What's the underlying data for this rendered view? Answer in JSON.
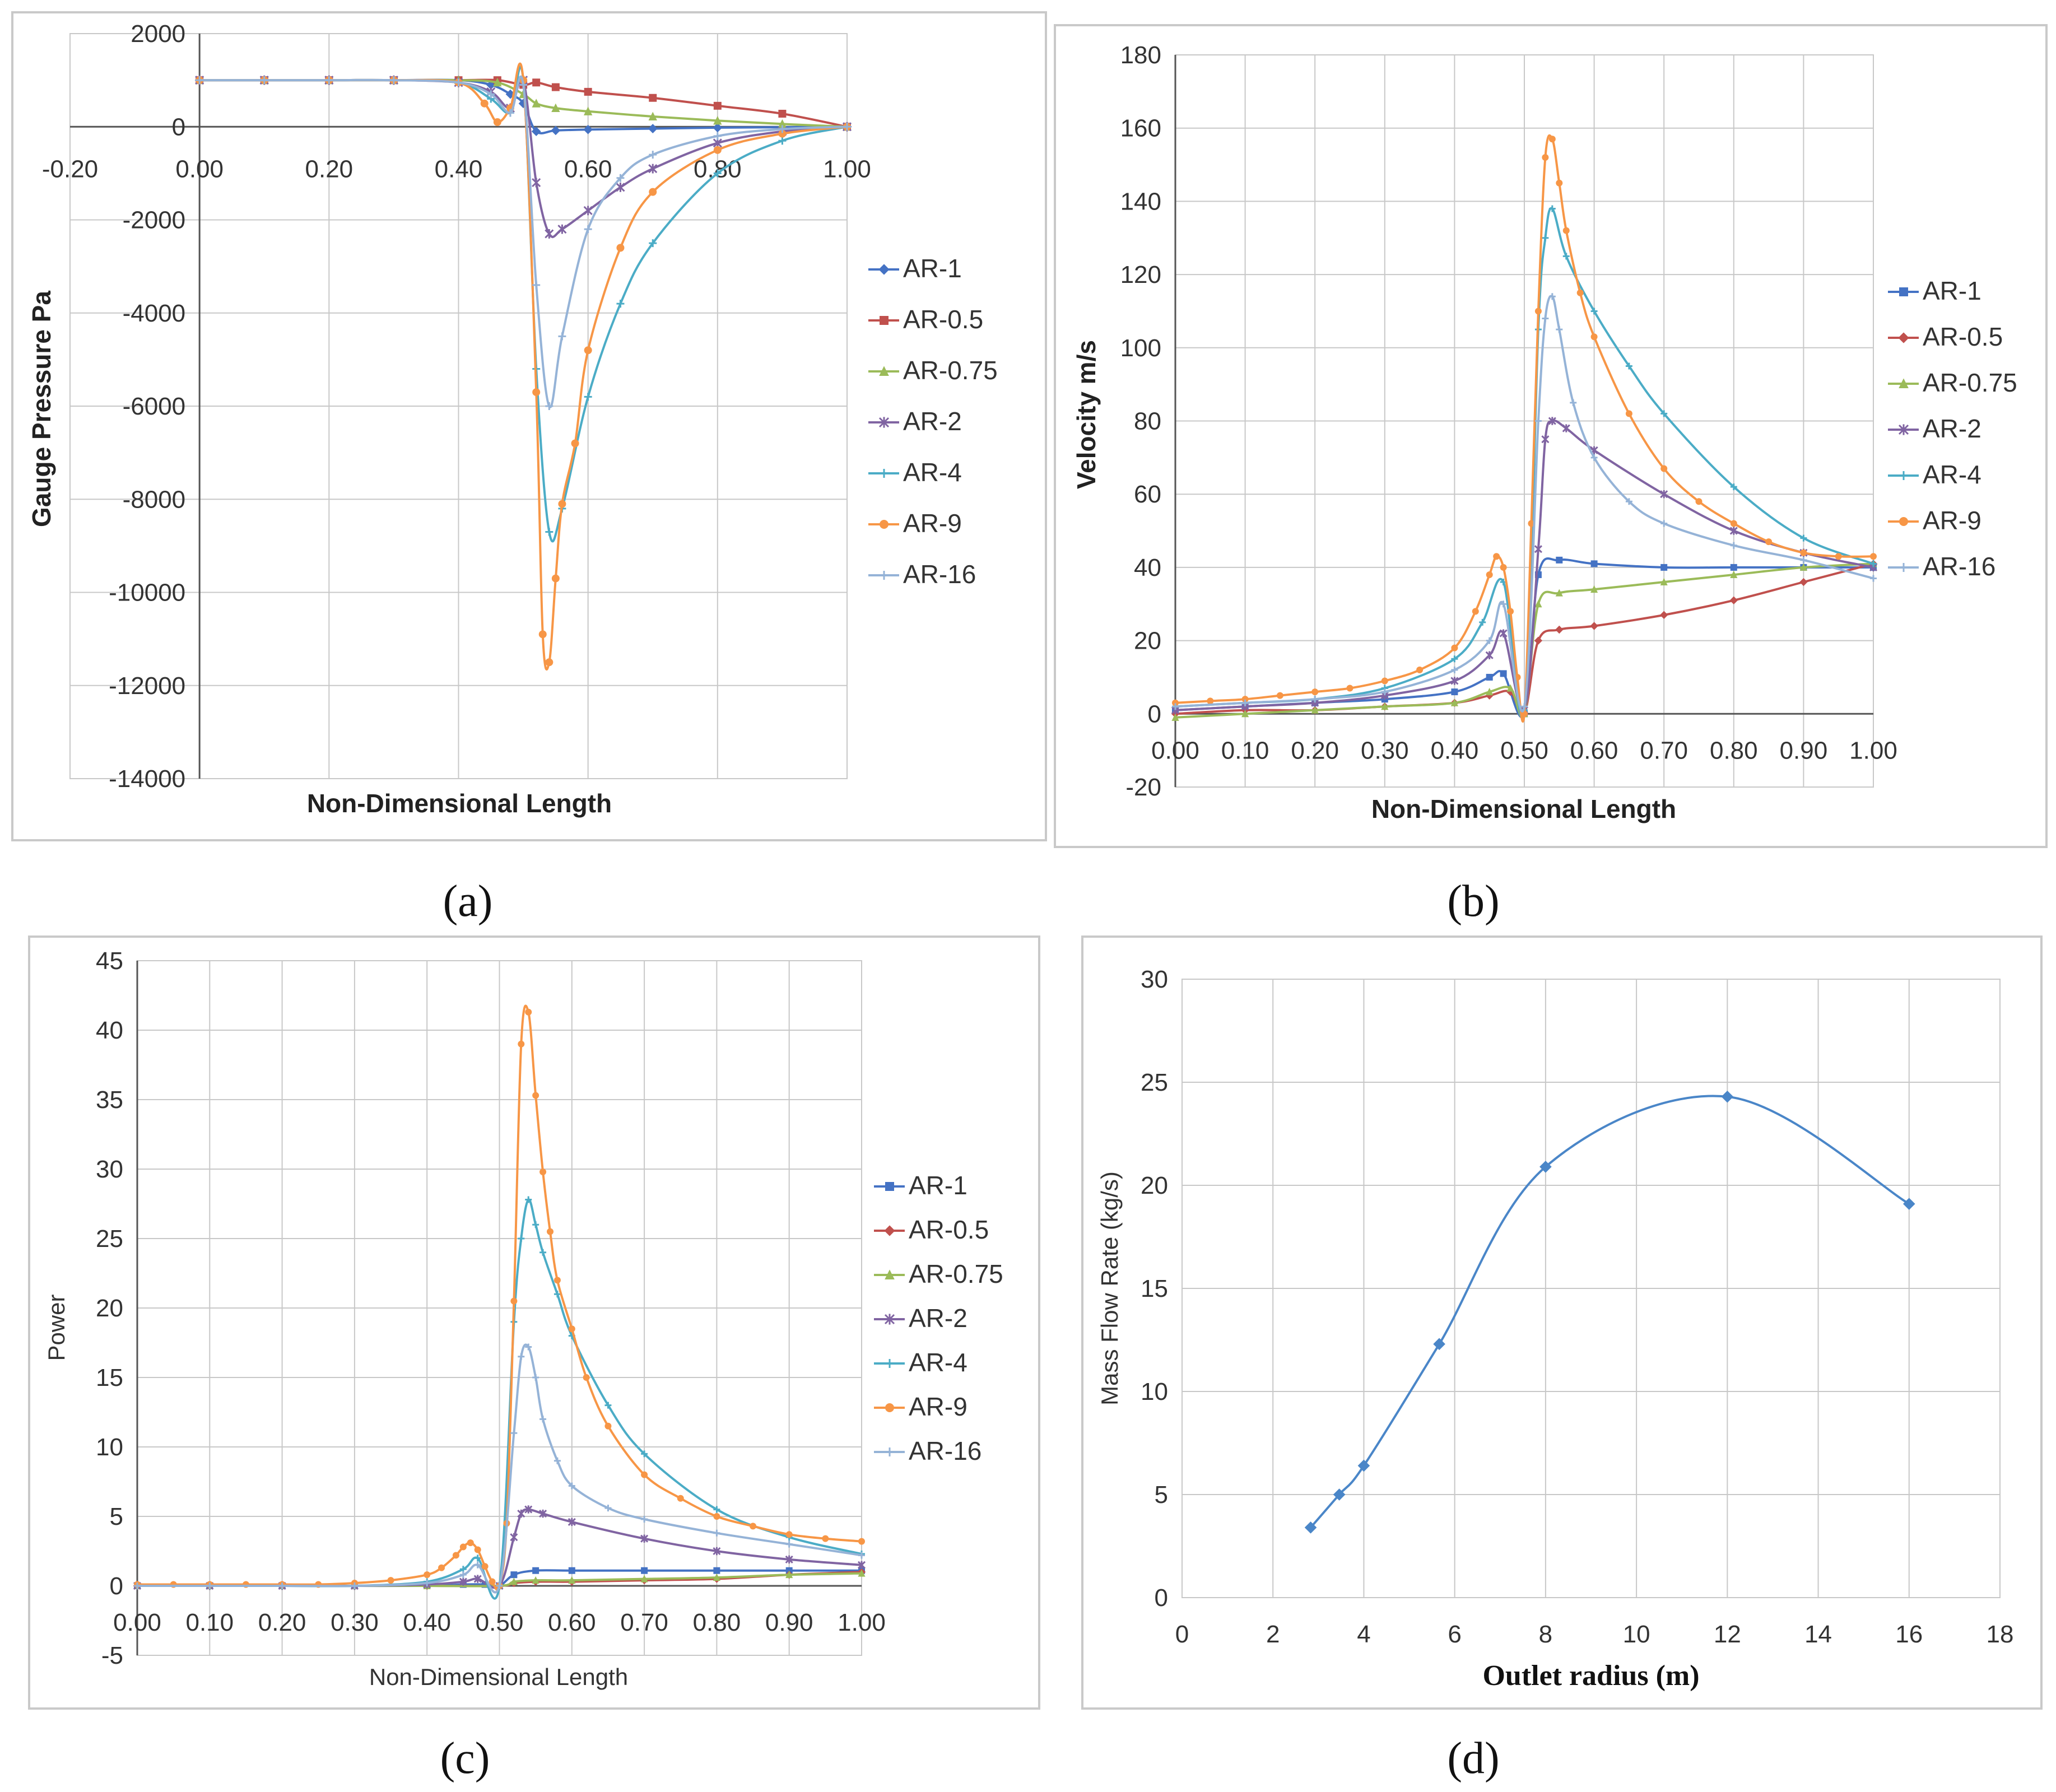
{
  "captions": [
    "(a)",
    "(b)",
    "(c)",
    "(d)"
  ],
  "colors": {
    "AR-1": "#4472C4",
    "AR-0.5": "#C0504D",
    "AR-0.75": "#9BBB59",
    "AR-2": "#8064A2",
    "AR-4": "#4BACC6",
    "AR-9": "#F79646",
    "AR-16": "#95B3D7",
    "mass": "#4A86C8"
  },
  "chart_data": [
    {
      "type": "line",
      "panel": "(a)",
      "xlabel": "Non-Dimensional Length",
      "ylabel": "Gauge Pressure Pa",
      "xlim": [
        -0.2,
        1.0
      ],
      "ylim": [
        -14000,
        2000
      ],
      "xticks": [
        "-0.20",
        "0.00",
        "0.20",
        "0.40",
        "0.60",
        "0.80",
        "1.00"
      ],
      "yticks": [
        "2000",
        "0",
        "-2000",
        "-4000",
        "-6000",
        "-8000",
        "-10000",
        "-12000",
        "-14000"
      ],
      "legend": [
        "AR-1",
        "AR-0.5",
        "AR-0.75",
        "AR-2",
        "AR-4",
        "AR-9",
        "AR-16"
      ],
      "series": [
        {
          "name": "AR-1",
          "marker": "diamond",
          "x": [
            0,
            0.1,
            0.2,
            0.3,
            0.4,
            0.45,
            0.48,
            0.5,
            0.52,
            0.55,
            0.6,
            0.7,
            0.8,
            0.9,
            1.0
          ],
          "y": [
            1000,
            1000,
            1000,
            1000,
            1000,
            900,
            700,
            500,
            -100,
            -80,
            -60,
            -40,
            -20,
            -10,
            0
          ]
        },
        {
          "name": "AR-0.5",
          "marker": "square",
          "x": [
            0,
            0.1,
            0.2,
            0.3,
            0.4,
            0.46,
            0.5,
            0.52,
            0.55,
            0.6,
            0.7,
            0.8,
            0.9,
            1.0
          ],
          "y": [
            1000,
            1000,
            1000,
            1000,
            1000,
            1000,
            900,
            950,
            850,
            750,
            620,
            450,
            280,
            0
          ]
        },
        {
          "name": "AR-0.75",
          "marker": "triangle",
          "x": [
            0,
            0.1,
            0.2,
            0.3,
            0.4,
            0.46,
            0.5,
            0.52,
            0.55,
            0.6,
            0.7,
            0.8,
            0.9,
            1.0
          ],
          "y": [
            1000,
            1000,
            1000,
            1000,
            1000,
            950,
            700,
            500,
            400,
            330,
            220,
            130,
            60,
            0
          ]
        },
        {
          "name": "AR-2",
          "marker": "star",
          "x": [
            0,
            0.1,
            0.2,
            0.3,
            0.4,
            0.45,
            0.48,
            0.5,
            0.52,
            0.54,
            0.56,
            0.6,
            0.65,
            0.7,
            0.8,
            0.9,
            1.0
          ],
          "y": [
            1000,
            1000,
            1000,
            1000,
            950,
            750,
            400,
            1000,
            -1200,
            -2300,
            -2200,
            -1800,
            -1300,
            -900,
            -350,
            -100,
            0
          ]
        },
        {
          "name": "AR-4",
          "marker": "plus",
          "x": [
            0,
            0.1,
            0.2,
            0.3,
            0.4,
            0.45,
            0.48,
            0.5,
            0.52,
            0.54,
            0.56,
            0.6,
            0.65,
            0.7,
            0.8,
            0.9,
            1.0
          ],
          "y": [
            1000,
            1000,
            1000,
            1000,
            950,
            600,
            300,
            1000,
            -5200,
            -8700,
            -8200,
            -5800,
            -3800,
            -2500,
            -1000,
            -300,
            0
          ]
        },
        {
          "name": "AR-9",
          "marker": "circle",
          "x": [
            0,
            0.1,
            0.2,
            0.3,
            0.4,
            0.44,
            0.46,
            0.48,
            0.5,
            0.52,
            0.53,
            0.54,
            0.55,
            0.56,
            0.58,
            0.6,
            0.65,
            0.7,
            0.8,
            0.9,
            1.0
          ],
          "y": [
            1000,
            1000,
            1000,
            1000,
            950,
            500,
            100,
            400,
            1000,
            -5700,
            -10900,
            -11500,
            -9700,
            -8100,
            -6800,
            -4800,
            -2600,
            -1400,
            -500,
            -150,
            0
          ]
        },
        {
          "name": "AR-16",
          "marker": "plus",
          "x": [
            0,
            0.1,
            0.2,
            0.3,
            0.4,
            0.45,
            0.48,
            0.5,
            0.52,
            0.54,
            0.56,
            0.6,
            0.65,
            0.7,
            0.8,
            0.9,
            1.0
          ],
          "y": [
            1000,
            1000,
            1000,
            1000,
            950,
            700,
            300,
            900,
            -3400,
            -6000,
            -4500,
            -2200,
            -1100,
            -600,
            -200,
            -50,
            0
          ]
        }
      ]
    },
    {
      "type": "line",
      "panel": "(b)",
      "xlabel": "Non-Dimensional Length",
      "ylabel": "Velocity m/s",
      "xlim": [
        0,
        1.0
      ],
      "ylim": [
        -20,
        180
      ],
      "xticks": [
        "0.00",
        "0.10",
        "0.20",
        "0.30",
        "0.40",
        "0.50",
        "0.60",
        "0.70",
        "0.80",
        "0.90",
        "1.00"
      ],
      "yticks": [
        "180",
        "160",
        "140",
        "120",
        "100",
        "80",
        "60",
        "40",
        "20",
        "0",
        "-20"
      ],
      "legend": [
        "AR-1",
        "AR-0.5",
        "AR-0.75",
        "AR-2",
        "AR-4",
        "AR-9",
        "AR-16"
      ],
      "series": [
        {
          "name": "AR-1",
          "marker": "square",
          "x": [
            0,
            0.1,
            0.2,
            0.3,
            0.4,
            0.45,
            0.47,
            0.5,
            0.52,
            0.55,
            0.6,
            0.7,
            0.8,
            0.9,
            1.0
          ],
          "y": [
            1,
            2,
            3,
            4,
            6,
            10,
            11,
            0,
            38,
            42,
            41,
            40,
            40,
            40,
            40
          ]
        },
        {
          "name": "AR-0.5",
          "marker": "diamond",
          "x": [
            0,
            0.1,
            0.2,
            0.3,
            0.4,
            0.45,
            0.48,
            0.5,
            0.52,
            0.55,
            0.6,
            0.7,
            0.8,
            0.9,
            1.0
          ],
          "y": [
            0,
            1,
            1,
            2,
            3,
            5,
            6,
            0,
            20,
            23,
            24,
            27,
            31,
            36,
            41
          ]
        },
        {
          "name": "AR-0.75",
          "marker": "triangle",
          "x": [
            0,
            0.1,
            0.2,
            0.3,
            0.4,
            0.45,
            0.48,
            0.5,
            0.52,
            0.55,
            0.6,
            0.7,
            0.8,
            0.9,
            1.0
          ],
          "y": [
            -1,
            0,
            1,
            2,
            3,
            6,
            7,
            0,
            30,
            33,
            34,
            36,
            38,
            40,
            41
          ]
        },
        {
          "name": "AR-2",
          "marker": "star",
          "x": [
            0,
            0.1,
            0.2,
            0.3,
            0.4,
            0.45,
            0.47,
            0.5,
            0.52,
            0.53,
            0.54,
            0.56,
            0.6,
            0.7,
            0.8,
            0.9,
            1.0
          ],
          "y": [
            1,
            2,
            3,
            5,
            9,
            16,
            22,
            1,
            45,
            75,
            80,
            78,
            72,
            60,
            50,
            44,
            40
          ]
        },
        {
          "name": "AR-4",
          "marker": "plus",
          "x": [
            0,
            0.1,
            0.2,
            0.3,
            0.4,
            0.44,
            0.47,
            0.5,
            0.52,
            0.53,
            0.54,
            0.56,
            0.6,
            0.65,
            0.7,
            0.8,
            0.9,
            1.0
          ],
          "y": [
            2,
            3,
            4,
            7,
            15,
            25,
            36,
            1,
            105,
            130,
            138,
            125,
            110,
            95,
            82,
            62,
            48,
            41
          ]
        },
        {
          "name": "AR-9",
          "marker": "circle",
          "x": [
            0,
            0.05,
            0.1,
            0.15,
            0.2,
            0.25,
            0.3,
            0.35,
            0.4,
            0.43,
            0.45,
            0.46,
            0.47,
            0.48,
            0.49,
            0.5,
            0.51,
            0.52,
            0.53,
            0.54,
            0.55,
            0.56,
            0.58,
            0.6,
            0.65,
            0.7,
            0.75,
            0.8,
            0.85,
            0.9,
            0.95,
            1.0
          ],
          "y": [
            3,
            3.5,
            4,
            5,
            6,
            7,
            9,
            12,
            18,
            28,
            38,
            43,
            40,
            28,
            10,
            0,
            52,
            110,
            152,
            157,
            145,
            132,
            115,
            103,
            82,
            67,
            58,
            52,
            47,
            44,
            43,
            43
          ]
        },
        {
          "name": "AR-16",
          "marker": "plus",
          "x": [
            0,
            0.1,
            0.2,
            0.3,
            0.4,
            0.45,
            0.47,
            0.5,
            0.52,
            0.53,
            0.54,
            0.55,
            0.57,
            0.6,
            0.65,
            0.7,
            0.8,
            0.9,
            1.0
          ],
          "y": [
            2,
            3,
            4,
            6,
            12,
            20,
            30,
            2,
            80,
            108,
            114,
            105,
            85,
            70,
            58,
            52,
            46,
            42,
            37
          ]
        }
      ]
    },
    {
      "type": "line",
      "panel": "(c)",
      "xlabel": "Non-Dimensional Length",
      "ylabel": "Power",
      "xlim": [
        0,
        1.0
      ],
      "ylim": [
        -5,
        45
      ],
      "xticks": [
        "0.00",
        "0.10",
        "0.20",
        "0.30",
        "0.40",
        "0.50",
        "0.60",
        "0.70",
        "0.80",
        "0.90",
        "1.00"
      ],
      "yticks": [
        "45",
        "40",
        "35",
        "30",
        "25",
        "20",
        "15",
        "10",
        "5",
        "0",
        "-5"
      ],
      "legend": [
        "AR-1",
        "AR-0.5",
        "AR-0.75",
        "AR-2",
        "AR-4",
        "AR-9",
        "AR-16"
      ],
      "series": [
        {
          "name": "AR-1",
          "marker": "square",
          "x": [
            0,
            0.1,
            0.2,
            0.3,
            0.4,
            0.45,
            0.48,
            0.5,
            0.52,
            0.55,
            0.6,
            0.7,
            0.8,
            0.9,
            1.0
          ],
          "y": [
            0,
            0,
            0,
            0,
            0,
            0.1,
            0.1,
            0,
            0.8,
            1.1,
            1.1,
            1.1,
            1.1,
            1.1,
            1.1
          ]
        },
        {
          "name": "AR-0.5",
          "marker": "diamond",
          "x": [
            0,
            0.1,
            0.2,
            0.3,
            0.4,
            0.5,
            0.52,
            0.55,
            0.6,
            0.7,
            0.8,
            0.9,
            1.0
          ],
          "y": [
            0,
            0,
            0,
            0,
            0,
            0,
            0.2,
            0.3,
            0.3,
            0.4,
            0.5,
            0.8,
            1.0
          ]
        },
        {
          "name": "AR-0.75",
          "marker": "triangle",
          "x": [
            0,
            0.1,
            0.2,
            0.3,
            0.4,
            0.5,
            0.52,
            0.55,
            0.6,
            0.7,
            0.8,
            0.9,
            1.0
          ],
          "y": [
            0,
            0,
            0,
            0,
            0,
            0,
            0.3,
            0.4,
            0.4,
            0.5,
            0.6,
            0.8,
            0.9
          ]
        },
        {
          "name": "AR-2",
          "marker": "star",
          "x": [
            0,
            0.1,
            0.2,
            0.3,
            0.4,
            0.45,
            0.47,
            0.5,
            0.52,
            0.53,
            0.54,
            0.56,
            0.6,
            0.7,
            0.8,
            0.9,
            1.0
          ],
          "y": [
            0,
            0,
            0,
            0,
            0.1,
            0.3,
            0.5,
            0,
            3.5,
            5.2,
            5.5,
            5.2,
            4.6,
            3.4,
            2.5,
            1.9,
            1.5
          ]
        },
        {
          "name": "AR-4",
          "marker": "plus",
          "x": [
            0,
            0.1,
            0.2,
            0.3,
            0.4,
            0.45,
            0.47,
            0.5,
            0.52,
            0.53,
            0.54,
            0.55,
            0.56,
            0.58,
            0.6,
            0.65,
            0.7,
            0.8,
            0.9,
            1.0
          ],
          "y": [
            0,
            0,
            0,
            0,
            0.3,
            1.2,
            2.0,
            0,
            19,
            25,
            27.8,
            26,
            24,
            21,
            18,
            13,
            9.5,
            5.5,
            3.5,
            2.3
          ]
        },
        {
          "name": "AR-9",
          "marker": "circle",
          "x": [
            0,
            0.05,
            0.1,
            0.15,
            0.2,
            0.25,
            0.3,
            0.35,
            0.4,
            0.42,
            0.44,
            0.45,
            0.46,
            0.47,
            0.48,
            0.49,
            0.5,
            0.51,
            0.52,
            0.53,
            0.54,
            0.55,
            0.56,
            0.57,
            0.58,
            0.6,
            0.62,
            0.65,
            0.7,
            0.75,
            0.8,
            0.85,
            0.9,
            0.95,
            1.0
          ],
          "y": [
            0.1,
            0.1,
            0.1,
            0.1,
            0.1,
            0.1,
            0.2,
            0.4,
            0.8,
            1.3,
            2.2,
            2.8,
            3.1,
            2.6,
            1.4,
            0.3,
            0,
            4.5,
            20.5,
            39,
            41.3,
            35.3,
            29.8,
            25.5,
            22,
            18.5,
            15,
            11.5,
            8,
            6.3,
            5,
            4.3,
            3.7,
            3.4,
            3.2
          ]
        },
        {
          "name": "AR-16",
          "marker": "plus",
          "x": [
            0,
            0.1,
            0.2,
            0.3,
            0.4,
            0.45,
            0.47,
            0.5,
            0.52,
            0.53,
            0.54,
            0.55,
            0.56,
            0.58,
            0.6,
            0.65,
            0.7,
            0.8,
            0.9,
            1.0
          ],
          "y": [
            0,
            0,
            0,
            0,
            0.2,
            0.8,
            1.5,
            0,
            11,
            16.5,
            17.2,
            15,
            12,
            9,
            7.2,
            5.6,
            4.8,
            3.8,
            3.0,
            2.2
          ]
        }
      ]
    },
    {
      "type": "line",
      "panel": "(d)",
      "xlabel": "Outlet radius (m)",
      "ylabel": "Mass Flow Rate (kg/s)",
      "xlim": [
        0,
        18
      ],
      "ylim": [
        0,
        30
      ],
      "xticks": [
        "0",
        "2",
        "4",
        "6",
        "8",
        "10",
        "12",
        "14",
        "16",
        "18"
      ],
      "yticks": [
        "30",
        "25",
        "20",
        "15",
        "10",
        "5",
        "0"
      ],
      "legend": [],
      "series": [
        {
          "name": "mass",
          "marker": "diamond",
          "x": [
            2.83,
            3.46,
            4,
            5.66,
            8,
            12,
            16
          ],
          "y": [
            3.4,
            5.0,
            6.4,
            12.3,
            20.9,
            24.3,
            19.1
          ]
        }
      ]
    }
  ]
}
